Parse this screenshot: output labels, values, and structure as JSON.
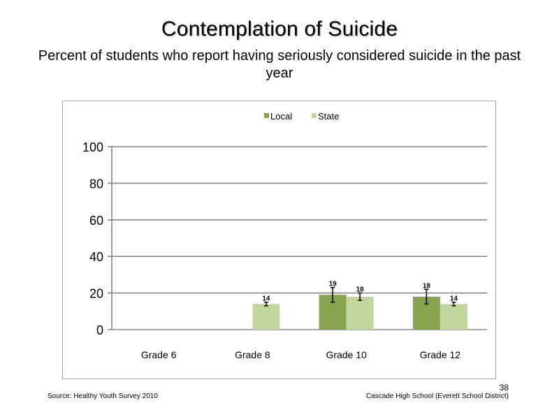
{
  "slide": {
    "title": "Contemplation  of Suicide",
    "subtitle": "Percent of students who report having seriously considered suicide in the past year",
    "source": "Source: Healthy Youth Survey 2010",
    "school": "Cascade High School (Everett School District)",
    "page_number": "38"
  },
  "chart_data": {
    "type": "bar",
    "categories": [
      "Grade 6",
      "Grade 8",
      "Grade 10",
      "Grade 12"
    ],
    "series": [
      {
        "name": "Local",
        "color": "#86a34d",
        "values": [
          null,
          null,
          19,
          18
        ],
        "labels": [
          "",
          "",
          "19",
          "18"
        ],
        "error": [
          null,
          null,
          [
            15,
            23
          ],
          [
            14,
            22
          ]
        ]
      },
      {
        "name": "State",
        "color": "#c2d69b",
        "values": [
          null,
          14,
          18,
          14
        ],
        "labels": [
          "",
          "14",
          "18",
          "14"
        ],
        "error": [
          null,
          [
            13,
            15
          ],
          [
            16,
            20
          ],
          [
            13,
            15
          ]
        ]
      }
    ],
    "ylim": [
      0,
      100
    ],
    "yticks": [
      "0",
      "20",
      "40",
      "60",
      "80",
      "100"
    ],
    "gridlines": true,
    "legend_position": "top"
  }
}
